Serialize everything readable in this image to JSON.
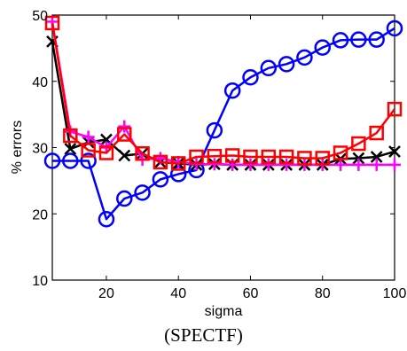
{
  "chart_data": {
    "type": "line",
    "xlabel": "sigma",
    "ylabel": "% errors",
    "caption": "(SPECTF)",
    "xlim": [
      5,
      100
    ],
    "ylim": [
      10,
      50
    ],
    "x_ticks": [
      20,
      40,
      60,
      80,
      100
    ],
    "y_ticks": [
      10,
      20,
      30,
      40,
      50
    ],
    "grid": false,
    "x": [
      5,
      10,
      15,
      20,
      25,
      30,
      35,
      40,
      45,
      50,
      55,
      60,
      65,
      70,
      75,
      80,
      85,
      90,
      95,
      100
    ],
    "series": [
      {
        "marker": "circle",
        "color": "#0000ff",
        "values": [
          28.0,
          28.0,
          28.0,
          19.2,
          22.3,
          23.2,
          25.2,
          26.0,
          26.6,
          32.6,
          38.6,
          40.6,
          42.0,
          42.6,
          43.6,
          45.1,
          46.2,
          46.3,
          46.3,
          48.0
        ]
      },
      {
        "marker": "x",
        "color": "#000000",
        "values": [
          46.0,
          29.8,
          30.8,
          31.2,
          28.8,
          29.1,
          27.8,
          27.6,
          27.4,
          27.5,
          27.4,
          27.4,
          27.4,
          27.4,
          27.4,
          27.4,
          28.3,
          28.4,
          28.6,
          29.4
        ]
      },
      {
        "marker": "plus",
        "color": "#ff00ff",
        "values": [
          49.0,
          32.4,
          31.6,
          30.0,
          33.2,
          28.2,
          28.4,
          27.8,
          27.5,
          27.5,
          27.4,
          27.4,
          27.4,
          27.4,
          27.4,
          27.4,
          27.4,
          27.4,
          27.4,
          27.4
        ]
      },
      {
        "marker": "square",
        "color": "#ff0000",
        "values": [
          48.8,
          31.8,
          29.6,
          29.2,
          32.0,
          29.1,
          27.8,
          27.6,
          28.6,
          28.7,
          28.8,
          28.6,
          28.6,
          28.6,
          28.4,
          28.4,
          29.2,
          30.6,
          32.2,
          35.8
        ]
      }
    ]
  }
}
